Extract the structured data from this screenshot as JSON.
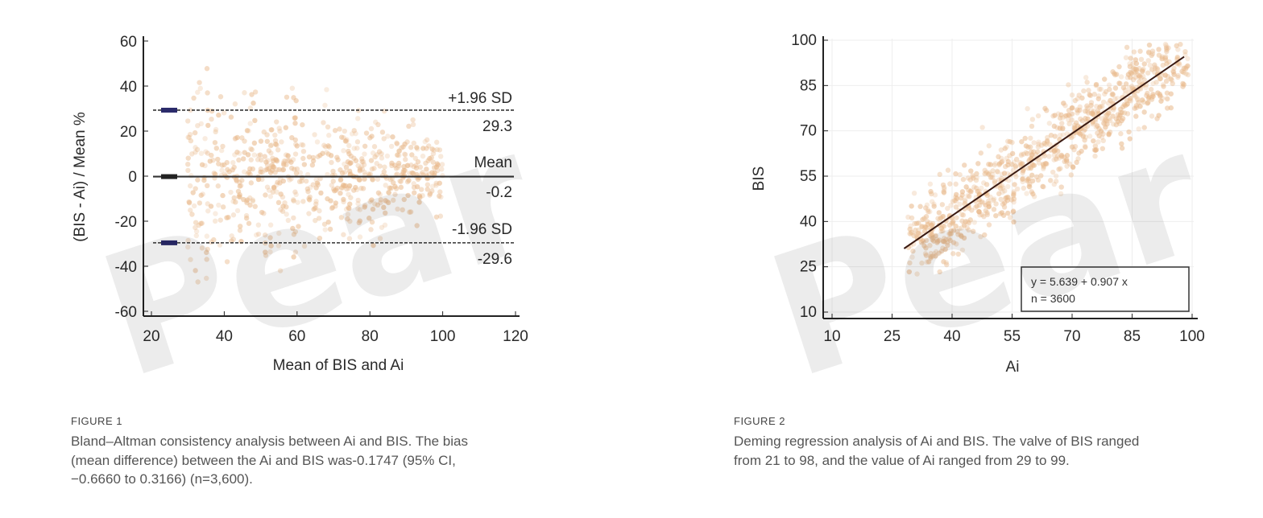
{
  "watermark": "Pear",
  "chart_data": [
    {
      "type": "scatter",
      "subtype": "bland-altman",
      "xlabel": "Mean of BIS and Ai",
      "ylabel": "(BIS - Ai) / Mean %",
      "xlim": [
        20,
        120
      ],
      "ylim": [
        -60,
        60
      ],
      "xticks": [
        20,
        40,
        60,
        80,
        100,
        120
      ],
      "yticks": [
        60,
        40,
        20,
        0,
        -20,
        -40,
        -60
      ],
      "grid": false,
      "point_color": "#e8b88a",
      "reference_lines": [
        {
          "label": "+1.96 SD",
          "value": 29.3,
          "value_label": "29.3",
          "style": "dashed"
        },
        {
          "label": "Mean",
          "value": -0.2,
          "value_label": "-0.2",
          "style": "solid"
        },
        {
          "label": "-1.96 SD",
          "value": -29.6,
          "value_label": "-29.6",
          "style": "dashed"
        }
      ]
    },
    {
      "type": "scatter",
      "subtype": "deming-regression",
      "xlabel": "Ai",
      "ylabel": "BIS",
      "xlim": [
        10,
        100
      ],
      "ylim": [
        10,
        100
      ],
      "xticks": [
        10,
        25,
        40,
        55,
        70,
        85,
        100
      ],
      "yticks": [
        100,
        85,
        70,
        55,
        40,
        25,
        10
      ],
      "grid": true,
      "point_color": "#e8b88a",
      "regression": {
        "intercept": 5.639,
        "slope": 0.907,
        "x_range": [
          28,
          98
        ]
      },
      "legend_lines": [
        "y = 5.639 + 0.907 x",
        "n = 3600"
      ],
      "legend_placement": "bottom-right"
    }
  ],
  "captions": [
    {
      "label": "FIGURE 1",
      "lines": [
        "Bland–Altman consistency analysis between Ai and BIS. The bias",
        "(mean difference) between the Ai and BIS was-0.1747 (95% CI,",
        "−0.6660 to 0.3166) (n=3,600)."
      ]
    },
    {
      "label": "FIGURE 2",
      "lines": [
        "Deming regression analysis of Ai and BIS. The valve of BIS ranged",
        "from 21 to 98, and the value of Ai ranged from 29 to 99."
      ]
    }
  ]
}
